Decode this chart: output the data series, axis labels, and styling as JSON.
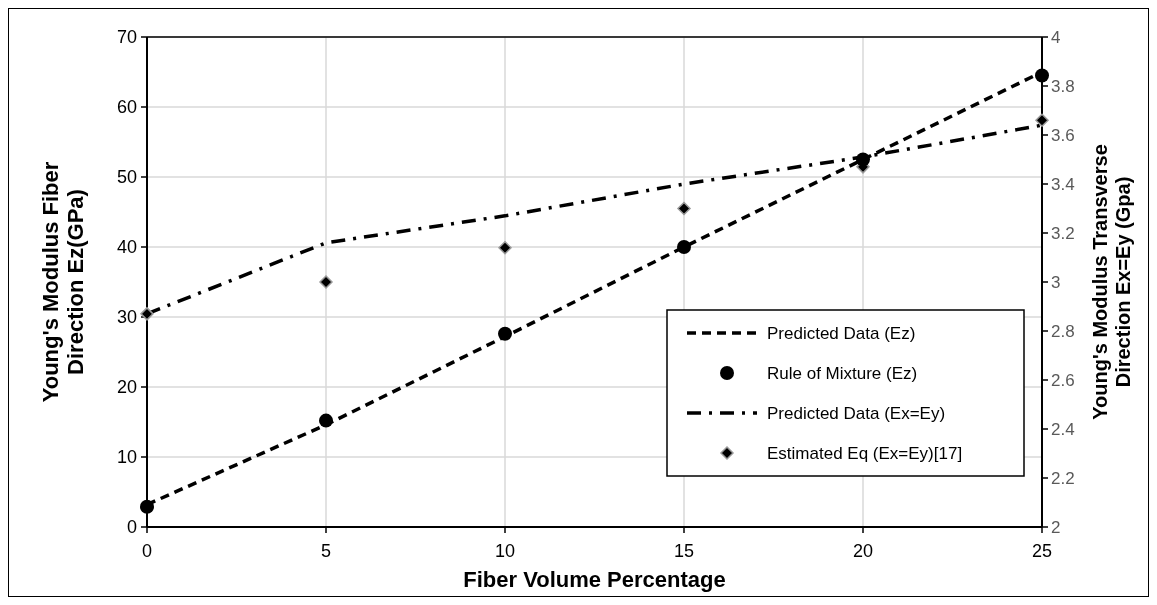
{
  "chart_data": {
    "type": "line",
    "xlabel": "Fiber Volume Percentage",
    "ylabel": "Young's Modulus Fiber\nDirection Ez(GPa)",
    "y2label": "Young's Modulus Transverse\nDirection Ex=Ey (Gpa)",
    "x": [
      0,
      5,
      10,
      15,
      20,
      25
    ],
    "xlim": [
      0,
      25
    ],
    "xticks": [
      0,
      5,
      10,
      15,
      20,
      25
    ],
    "ylim": [
      0,
      70
    ],
    "yticks": [
      0,
      10,
      20,
      30,
      40,
      50,
      60,
      70
    ],
    "y2lim": [
      2,
      4
    ],
    "y2ticks": [
      2,
      2.2,
      2.4,
      2.6,
      2.8,
      3,
      3.2,
      3.4,
      3.6,
      3.8,
      4
    ],
    "grid": true,
    "legend": "right",
    "series": [
      {
        "name": "Predicted Data (Ez)",
        "color": "#000000",
        "line_style": "dashed",
        "marker": "none",
        "values": [
          3.2,
          14.6,
          27.2,
          40,
          52.5,
          65
        ]
      },
      {
        "name": "Rule of Mixture (Ez)",
        "type": "scatter",
        "color": "#000000",
        "marker": "circle",
        "values": [
          2.9,
          15.2,
          27.6,
          40,
          52.5,
          64.5
        ]
      },
      {
        "name": "Predicted Data (Ex=Ey)",
        "axis": "y2",
        "color": "#000000",
        "line_style": "dashdot",
        "marker": "none",
        "values": [
          2.87,
          3.16,
          3.27,
          3.4,
          3.51,
          3.64
        ]
      },
      {
        "name": "Estimated Eq (Ex=Ey)[17]",
        "type": "scatter",
        "axis": "y2",
        "color": "#000000",
        "marker": "diamond",
        "values": [
          2.87,
          3.0,
          3.14,
          3.3,
          3.47,
          3.66
        ]
      }
    ]
  }
}
